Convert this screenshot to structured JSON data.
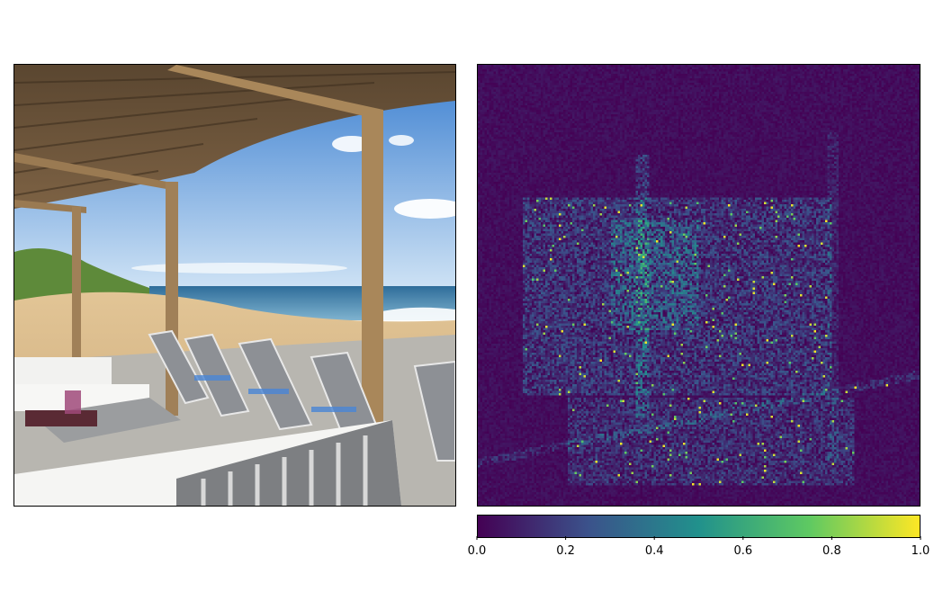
{
  "colors": {
    "colormap": "viridis",
    "viridis_stops": [
      "#440154",
      "#3b528b",
      "#21918c",
      "#5ec962",
      "#fde725"
    ],
    "sky": "#6fa8dc",
    "sand": "#d9b98a",
    "sea": "#3f7aa6",
    "wood": "#8a6a42"
  },
  "chart_data": [
    {
      "type": "image",
      "panel": "left",
      "content": "beach terrace photograph"
    },
    {
      "type": "heatmap",
      "panel": "right",
      "colormap": "viridis",
      "value_range": [
        0.0,
        1.0
      ],
      "grid": false,
      "colorbar": {
        "orientation": "horizontal",
        "placement": "bottom",
        "ticks": [
          0.0,
          0.2,
          0.4,
          0.6,
          0.8,
          1.0
        ],
        "tick_labels": [
          "0.0",
          "0.2",
          "0.4",
          "0.6",
          "0.8",
          "1.0"
        ]
      }
    }
  ]
}
